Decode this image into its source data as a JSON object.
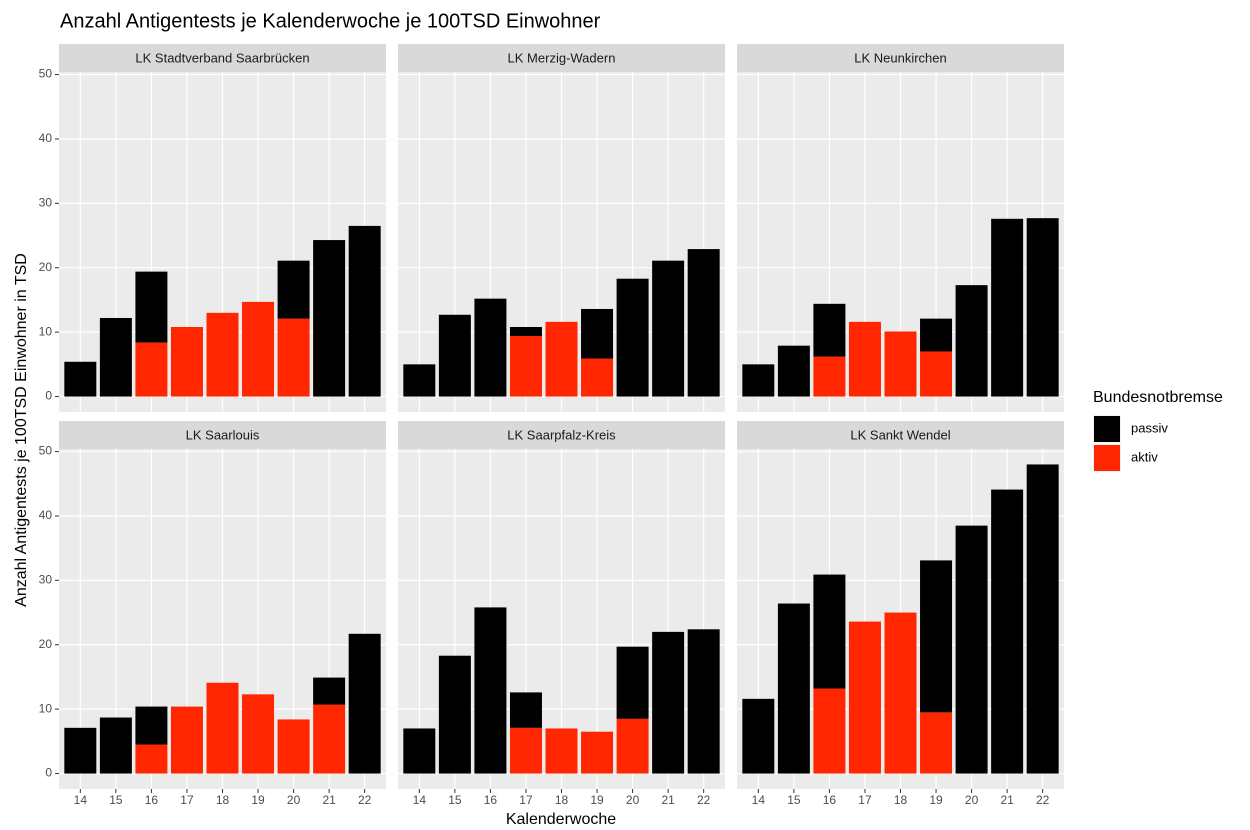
{
  "title": "Anzahl Antigentests je Kalenderwoche je 100TSD Einwohner",
  "x_label": "Kalenderwoche",
  "y_label": "Anzahl Antigentests je 100TSD Einwohner in TSD",
  "legend": {
    "title": "Bundesnotbremse",
    "position": "right"
  },
  "chart_data": [
    {
      "type": "bar",
      "stacked": true,
      "title": "LK Stadtverband Saarbrücken",
      "categories": [
        "14",
        "15",
        "16",
        "17",
        "18",
        "19",
        "20",
        "21",
        "22"
      ],
      "series": [
        {
          "name": "aktiv",
          "color": "#FF2600",
          "values": [
            null,
            null,
            8.4,
            10.8,
            13.0,
            14.7,
            12.1,
            null,
            null
          ]
        },
        {
          "name": "passiv",
          "color": "#000000",
          "values": [
            5.4,
            12.2,
            11.0,
            null,
            null,
            null,
            9.0,
            24.3,
            26.5
          ]
        }
      ],
      "ylim": [
        -2.4,
        50.4
      ],
      "yticks": [
        0,
        10,
        20,
        30,
        40,
        50
      ],
      "grid": true
    },
    {
      "type": "bar",
      "stacked": true,
      "title": "LK Merzig-Wadern",
      "categories": [
        "14",
        "15",
        "16",
        "17",
        "18",
        "19",
        "20",
        "21",
        "22"
      ],
      "series": [
        {
          "name": "aktiv",
          "color": "#FF2600",
          "values": [
            null,
            null,
            null,
            9.4,
            11.6,
            5.9,
            null,
            null,
            null
          ]
        },
        {
          "name": "passiv",
          "color": "#000000",
          "values": [
            5.0,
            12.7,
            15.2,
            1.4,
            null,
            7.7,
            18.3,
            21.1,
            22.9
          ]
        }
      ],
      "ylim": [
        -2.4,
        50.4
      ],
      "yticks": [
        0,
        10,
        20,
        30,
        40,
        50
      ],
      "grid": true
    },
    {
      "type": "bar",
      "stacked": true,
      "title": "LK Neunkirchen",
      "categories": [
        "14",
        "15",
        "16",
        "17",
        "18",
        "19",
        "20",
        "21",
        "22"
      ],
      "series": [
        {
          "name": "aktiv",
          "color": "#FF2600",
          "values": [
            null,
            null,
            6.2,
            11.6,
            10.1,
            7.0,
            null,
            null,
            null
          ]
        },
        {
          "name": "passiv",
          "color": "#000000",
          "values": [
            5.0,
            7.9,
            8.2,
            null,
            null,
            5.1,
            17.3,
            27.6,
            27.7
          ]
        }
      ],
      "ylim": [
        -2.4,
        50.4
      ],
      "yticks": [
        0,
        10,
        20,
        30,
        40,
        50
      ],
      "grid": true
    },
    {
      "type": "bar",
      "stacked": true,
      "title": "LK Saarlouis",
      "categories": [
        "14",
        "15",
        "16",
        "17",
        "18",
        "19",
        "20",
        "21",
        "22"
      ],
      "series": [
        {
          "name": "aktiv",
          "color": "#FF2600",
          "values": [
            null,
            null,
            4.5,
            10.4,
            14.1,
            12.3,
            8.4,
            10.7,
            null
          ]
        },
        {
          "name": "passiv",
          "color": "#000000",
          "values": [
            7.1,
            8.7,
            5.9,
            null,
            null,
            null,
            null,
            4.2,
            21.7
          ]
        }
      ],
      "ylim": [
        -2.4,
        50.4
      ],
      "yticks": [
        0,
        10,
        20,
        30,
        40,
        50
      ],
      "grid": true
    },
    {
      "type": "bar",
      "stacked": true,
      "title": "LK Saarpfalz-Kreis",
      "categories": [
        "14",
        "15",
        "16",
        "17",
        "18",
        "19",
        "20",
        "21",
        "22"
      ],
      "series": [
        {
          "name": "aktiv",
          "color": "#FF2600",
          "values": [
            null,
            null,
            null,
            7.1,
            7.0,
            6.5,
            8.5,
            null,
            null
          ]
        },
        {
          "name": "passiv",
          "color": "#000000",
          "values": [
            7.0,
            18.3,
            25.8,
            5.5,
            null,
            null,
            11.2,
            22.0,
            22.4
          ]
        }
      ],
      "ylim": [
        -2.4,
        50.4
      ],
      "yticks": [
        0,
        10,
        20,
        30,
        40,
        50
      ],
      "grid": true
    },
    {
      "type": "bar",
      "stacked": true,
      "title": "LK Sankt Wendel",
      "categories": [
        "14",
        "15",
        "16",
        "17",
        "18",
        "19",
        "20",
        "21",
        "22"
      ],
      "series": [
        {
          "name": "aktiv",
          "color": "#FF2600",
          "values": [
            null,
            null,
            13.2,
            23.6,
            25.0,
            9.5,
            null,
            null,
            null
          ]
        },
        {
          "name": "passiv",
          "color": "#000000",
          "values": [
            11.6,
            26.4,
            17.7,
            null,
            null,
            23.6,
            38.5,
            44.1,
            48.0
          ]
        }
      ],
      "ylim": [
        -2.4,
        50.4
      ],
      "yticks": [
        0,
        10,
        20,
        30,
        40,
        50
      ],
      "grid": true
    }
  ]
}
